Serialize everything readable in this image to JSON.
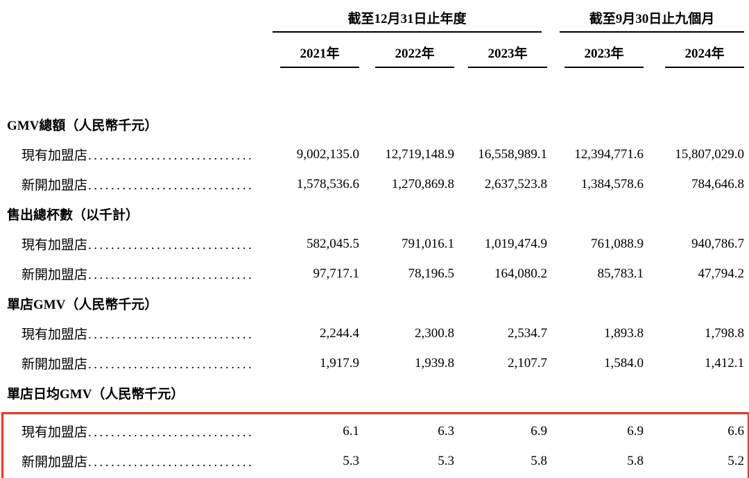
{
  "header": {
    "groups": [
      {
        "label": "截至12月31日止年度",
        "span_columns": 3
      },
      {
        "label": "截至9月30日止九個月",
        "span_columns": 2
      }
    ],
    "columns": [
      "2021年",
      "2022年",
      "2023年",
      "2023年",
      "2024年"
    ]
  },
  "sections": [
    {
      "title": "GMV總額（人民幣千元）",
      "highlighted": false,
      "rows": [
        {
          "label": "現有加盟店",
          "values": [
            "9,002,135.0",
            "12,719,148.9",
            "16,558,989.1",
            "12,394,771.6",
            "15,807,029.0"
          ]
        },
        {
          "label": "新開加盟店",
          "values": [
            "1,578,536.6",
            "1,270,869.8",
            "2,637,523.8",
            "1,384,578.6",
            "784,646.8"
          ]
        }
      ]
    },
    {
      "title": "售出總杯數（以千計）",
      "highlighted": false,
      "rows": [
        {
          "label": "現有加盟店",
          "values": [
            "582,045.5",
            "791,016.1",
            "1,019,474.9",
            "761,088.9",
            "940,786.7"
          ]
        },
        {
          "label": "新開加盟店",
          "values": [
            "97,717.1",
            "78,196.5",
            "164,080.2",
            "85,783.1",
            "47,794.2"
          ]
        }
      ]
    },
    {
      "title": "單店GMV（人民幣千元）",
      "highlighted": false,
      "rows": [
        {
          "label": "現有加盟店",
          "values": [
            "2,244.4",
            "2,300.8",
            "2,534.7",
            "1,893.8",
            "1,798.8"
          ]
        },
        {
          "label": "新開加盟店",
          "values": [
            "1,917.9",
            "1,939.8",
            "2,107.7",
            "1,584.0",
            "1,412.1"
          ]
        }
      ]
    },
    {
      "title": "單店日均GMV（人民幣千元）",
      "highlighted": true,
      "rows": [
        {
          "label": "現有加盟店",
          "values": [
            "6.1",
            "6.3",
            "6.9",
            "6.9",
            "6.6"
          ]
        },
        {
          "label": "新開加盟店",
          "values": [
            "5.3",
            "5.3",
            "5.8",
            "5.8",
            "5.2"
          ]
        }
      ]
    }
  ],
  "colors": {
    "highlight_border": "#e53b2c",
    "rule_line": "#000000",
    "text": "#000000",
    "background": "#ffffff"
  }
}
